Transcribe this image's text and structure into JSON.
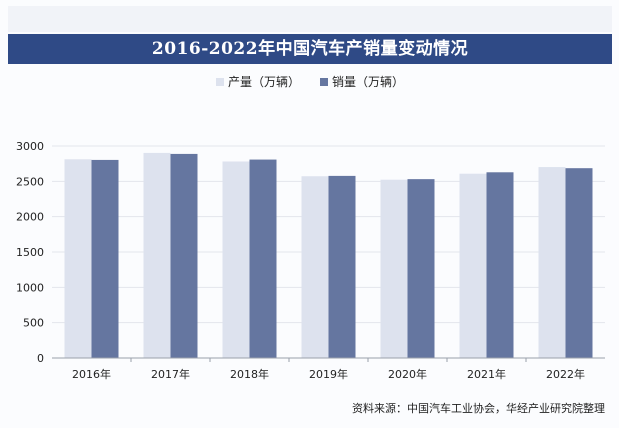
{
  "header": {
    "title": "2016-2022年中国汽车产销量变动情况"
  },
  "source": {
    "text": "资料来源：中国汽车工业协会，华经产业研究院整理"
  },
  "chart_data": {
    "type": "bar",
    "title": "2016-2022年中国汽车产销量变动情况",
    "categories": [
      "2016年",
      "2017年",
      "2018年",
      "2019年",
      "2020年",
      "2021年",
      "2022年"
    ],
    "series": [
      {
        "name": "产量（万辆）",
        "color": "#dde2ee",
        "values": [
          2812,
          2902,
          2781,
          2572,
          2523,
          2608,
          2702
        ]
      },
      {
        "name": "销量（万辆）",
        "color": "#6576a0",
        "values": [
          2803,
          2888,
          2808,
          2577,
          2531,
          2628,
          2686
        ]
      }
    ],
    "yticks": [
      0,
      500,
      1000,
      1500,
      2000,
      2500,
      3000
    ],
    "ylim": [
      0,
      3000
    ],
    "grid": true,
    "legend": "top-center"
  }
}
